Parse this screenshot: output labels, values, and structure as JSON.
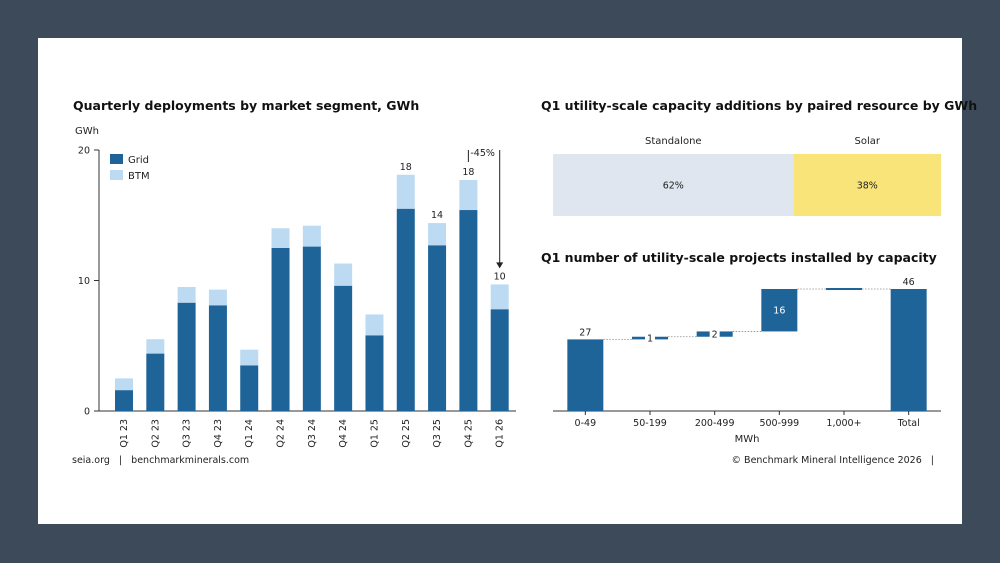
{
  "colors": {
    "background": "#3c4a59",
    "grid_dark": "#1f6499",
    "btm_light": "#bcdaf2",
    "standalone": "#dfe6ef",
    "solar": "#f9e47a",
    "axis": "#333333"
  },
  "footer": {
    "left": "seia.org   |   benchmarkminerals.com",
    "right": "© Benchmark Mineral Intelligence 2026   |"
  },
  "chart_data": [
    {
      "type": "bar",
      "stacked": true,
      "title": "Quarterly deployments by market segment, GWh",
      "ylabel": "GWh",
      "ylim": [
        0,
        20
      ],
      "yticks": [
        0,
        10,
        20
      ],
      "categories": [
        "Q1 23",
        "Q2 23",
        "Q3 23",
        "Q4 23",
        "Q1 24",
        "Q2 24",
        "Q3 24",
        "Q4 24",
        "Q1 25",
        "Q2 25",
        "Q3 25",
        "Q4 25",
        "Q1 26"
      ],
      "series": [
        {
          "name": "Grid",
          "values": [
            1.6,
            4.4,
            8.3,
            8.1,
            3.5,
            12.5,
            12.6,
            9.6,
            5.8,
            15.5,
            12.7,
            15.4,
            7.8
          ]
        },
        {
          "name": "BTM",
          "values": [
            0.9,
            1.1,
            1.2,
            1.2,
            1.2,
            1.5,
            1.6,
            1.7,
            1.6,
            2.6,
            1.7,
            2.3,
            1.9
          ]
        }
      ],
      "total_labels": [
        {
          "category": "Q2 25",
          "label": "18"
        },
        {
          "category": "Q3 25",
          "label": "14"
        },
        {
          "category": "Q4 25",
          "label": "18"
        },
        {
          "category": "Q1 26",
          "label": "10"
        }
      ],
      "annotation": {
        "text": "-45%",
        "from": "Q4 25",
        "to": "Q1 26"
      },
      "legend_placement": "top-left"
    },
    {
      "type": "bar",
      "stacked": true,
      "orientation": "horizontal",
      "title": "Q1 utility-scale capacity additions by paired resource by GWh",
      "segments": [
        {
          "name": "Standalone",
          "value": 62,
          "label": "62%"
        },
        {
          "name": "Solar",
          "value": 38,
          "label": "38%"
        }
      ]
    },
    {
      "type": "waterfall",
      "title": "Q1 number of utility-scale projects installed by capacity",
      "xlabel": "MWh",
      "categories": [
        "0-49",
        "50-199",
        "200-499",
        "500-999",
        "1,000+",
        "Total"
      ],
      "values": [
        27,
        1,
        2,
        16,
        0,
        46
      ],
      "labels": [
        "27",
        "1",
        "2",
        "16",
        "",
        "46"
      ],
      "ylim": [
        0,
        46
      ]
    }
  ]
}
